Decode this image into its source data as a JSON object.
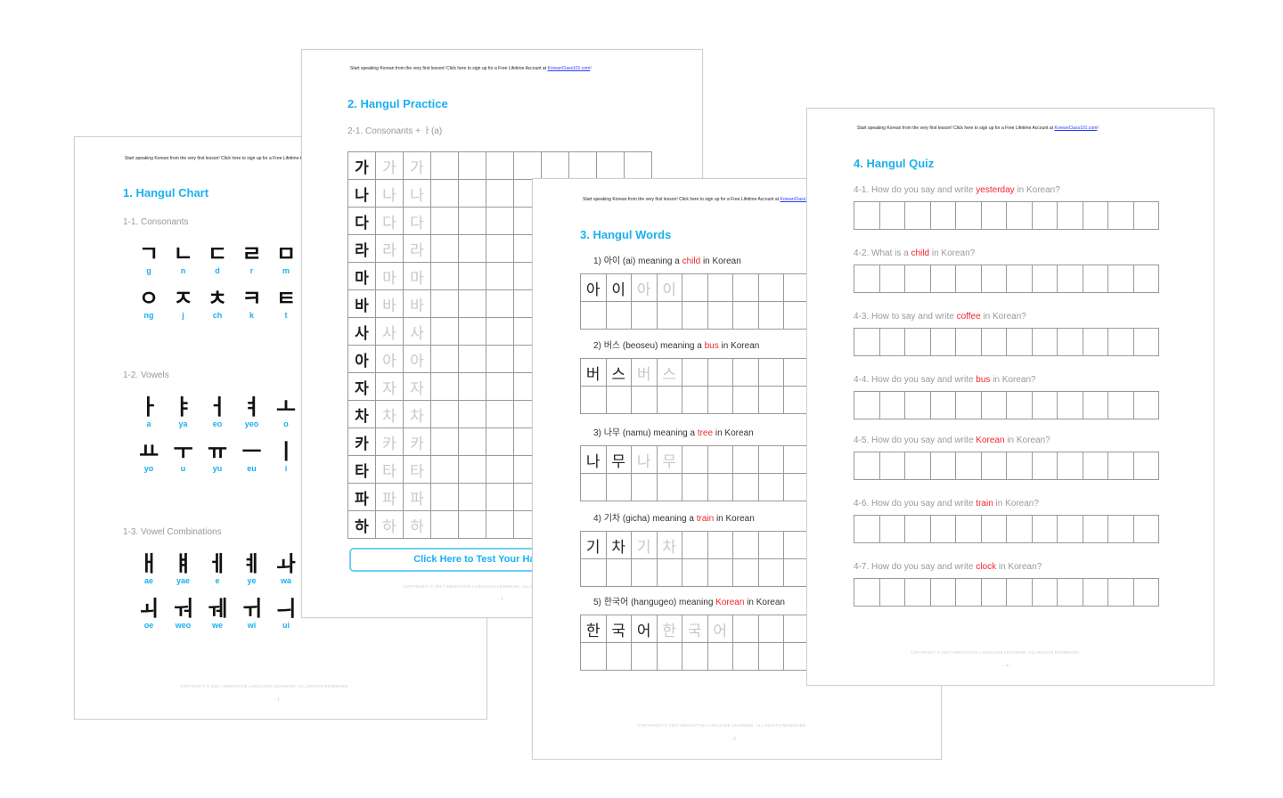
{
  "header_text": "Start speaking Korean from the very first lesson! Click here to sign up for a Free Lifetime Account at ",
  "header_link": "KoreanClass101.com",
  "header_end": "!",
  "footer_text": "COPYRIGHT © 2017 INNOVATIVE LANGUAGE LEARNING. ALL RIGHTS RESERVED.",
  "colors": {
    "title": "#1ab0f0",
    "highlight": "#f2262c"
  },
  "page1": {
    "title": "1. Hangul Chart",
    "page_number": "- 1 -",
    "sections": [
      {
        "label": "1-1. Consonants",
        "rows": [
          [
            [
              "ㄱ",
              "g"
            ],
            [
              "ㄴ",
              "n"
            ],
            [
              "ㄷ",
              "d"
            ],
            [
              "ㄹ",
              "r"
            ],
            [
              "ㅁ",
              "m"
            ]
          ],
          [
            [
              "ㅇ",
              "ng"
            ],
            [
              "ㅈ",
              "j"
            ],
            [
              "ㅊ",
              "ch"
            ],
            [
              "ㅋ",
              "k"
            ],
            [
              "ㅌ",
              "t"
            ]
          ]
        ]
      },
      {
        "label": "1-2. Vowels",
        "rows": [
          [
            [
              "ㅏ",
              "a"
            ],
            [
              "ㅑ",
              "ya"
            ],
            [
              "ㅓ",
              "eo"
            ],
            [
              "ㅕ",
              "yeo"
            ],
            [
              "ㅗ",
              "o"
            ]
          ],
          [
            [
              "ㅛ",
              "yo"
            ],
            [
              "ㅜ",
              "u"
            ],
            [
              "ㅠ",
              "yu"
            ],
            [
              "ㅡ",
              "eu"
            ],
            [
              "ㅣ",
              "i"
            ]
          ]
        ]
      },
      {
        "label": "1-3. Vowel Combinations",
        "rows": [
          [
            [
              "ㅐ",
              "ae"
            ],
            [
              "ㅒ",
              "yae"
            ],
            [
              "ㅔ",
              "e"
            ],
            [
              "ㅖ",
              "ye"
            ],
            [
              "ㅘ",
              "wa"
            ]
          ],
          [
            [
              "ㅚ",
              "oe"
            ],
            [
              "ㅝ",
              "weo"
            ],
            [
              "ㅞ",
              "we"
            ],
            [
              "ㅟ",
              "wi"
            ],
            [
              "ㅢ",
              "ui"
            ]
          ]
        ]
      }
    ]
  },
  "page2": {
    "title": "2. Hangul Practice",
    "subtitle": "2-1. Consonants + ㅏ(a)",
    "syllables": [
      "가",
      "나",
      "다",
      "라",
      "마",
      "바",
      "사",
      "아",
      "자",
      "차",
      "카",
      "타",
      "파",
      "하"
    ],
    "button_label": "Click Here to Test Your Hangul",
    "page_number": "- 2 -"
  },
  "page3": {
    "title": "3. Hangul Words",
    "page_number": "- 3 -",
    "words": [
      {
        "num": "1)",
        "korean": "아이",
        "roman": "(ai)",
        "pre": "meaning a",
        "meaning": "child",
        "post": "in Korean",
        "chars": [
          "아",
          "이"
        ]
      },
      {
        "num": "2)",
        "korean": "버스",
        "roman": "(beoseu)",
        "pre": "meaning a",
        "meaning": "bus",
        "post": "in Korean",
        "chars": [
          "버",
          "스"
        ]
      },
      {
        "num": "3)",
        "korean": "나무",
        "roman": "(namu)",
        "pre": "meaning a",
        "meaning": "tree",
        "post": "in Korean",
        "chars": [
          "나",
          "무"
        ]
      },
      {
        "num": "4)",
        "korean": "기차",
        "roman": "(gicha)",
        "pre": "meaning a",
        "meaning": "train",
        "post": "in Korean",
        "chars": [
          "기",
          "차"
        ]
      },
      {
        "num": "5)",
        "korean": "한국어",
        "roman": "(hangugeo)",
        "pre": "meaning",
        "meaning": "Korean",
        "post": "in Korean",
        "chars": [
          "한",
          "국",
          "어"
        ]
      }
    ]
  },
  "page4": {
    "title": "4. Hangul Quiz",
    "page_number": "- 4 -",
    "questions": [
      {
        "pre": "4-1. How do you say and write",
        "word": "yesterday",
        "post": "in Korean?"
      },
      {
        "pre": "4-2. What is a",
        "word": "child",
        "post": "in Korean?"
      },
      {
        "pre": "4-3. How to say and write",
        "word": "coffee",
        "post": "in Korean?"
      },
      {
        "pre": "4-4. How do you say and write",
        "word": "bus",
        "post": "in Korean?"
      },
      {
        "pre": "4-5. How do you say and write",
        "word": "Korean",
        "post": "in Korean?"
      },
      {
        "pre": "4-6. How do you say and write",
        "word": "train",
        "post": "in Korean?"
      },
      {
        "pre": "4-7. How do you say and write",
        "word": "clock",
        "post": "in Korean?"
      }
    ]
  }
}
